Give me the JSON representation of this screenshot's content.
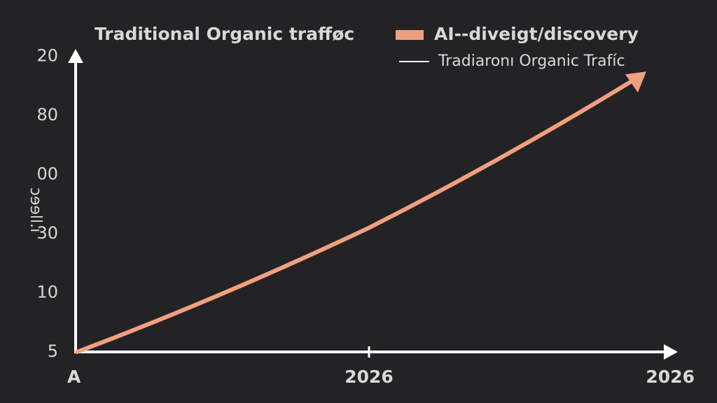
{
  "chart_data": {
    "type": "line",
    "title": "Traditional Organic trafføc",
    "y_label": "ɔɘɘll.ı",
    "categories": [
      "A",
      "2026",
      "2026"
    ],
    "y_categories": [
      "5",
      "10",
      "30",
      "00",
      "80",
      "20"
    ],
    "series": [
      {
        "name": "AI--diveigt/discovery",
        "color": "#f0a07e",
        "values": [
          0,
          2.1,
          4.6
        ]
      }
    ],
    "legend": [
      {
        "name": "AI--diveigt/discovery",
        "color": "#f0a07e",
        "marker": "rect"
      },
      {
        "name": "Tradiaronı Organic Trafíc",
        "color": "#ffffff",
        "marker": "line"
      }
    ]
  }
}
